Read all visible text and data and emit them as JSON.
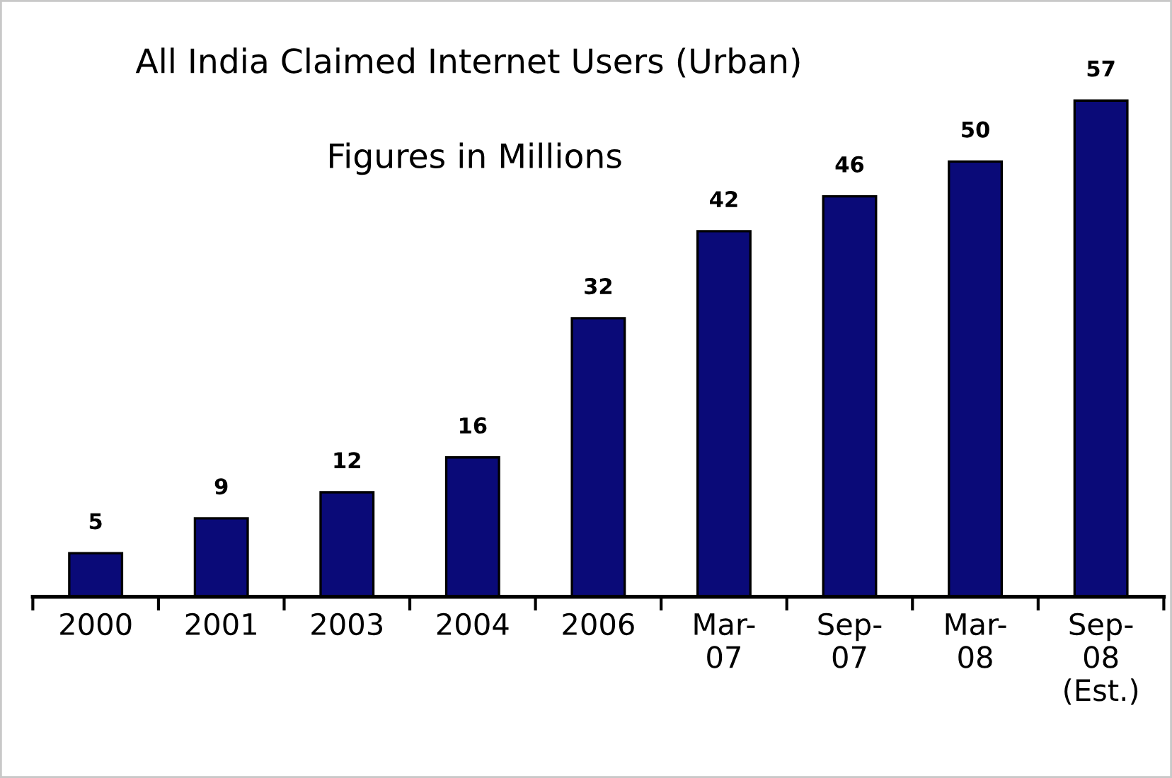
{
  "chart_data": {
    "type": "bar",
    "title": "All India Claimed Internet Users (Urban)",
    "subtitle": "Figures in Millions",
    "categories": [
      "2000",
      "2001",
      "2003",
      "2004",
      "2006",
      "Mar-\n07",
      "Sep-\n07",
      "Mar-\n08",
      "Sep-\n08\n(Est.)"
    ],
    "values": [
      5,
      9,
      12,
      16,
      32,
      42,
      46,
      50,
      57
    ],
    "color": "#0a0a78",
    "data_labels": true,
    "grid": false,
    "legend": false
  }
}
